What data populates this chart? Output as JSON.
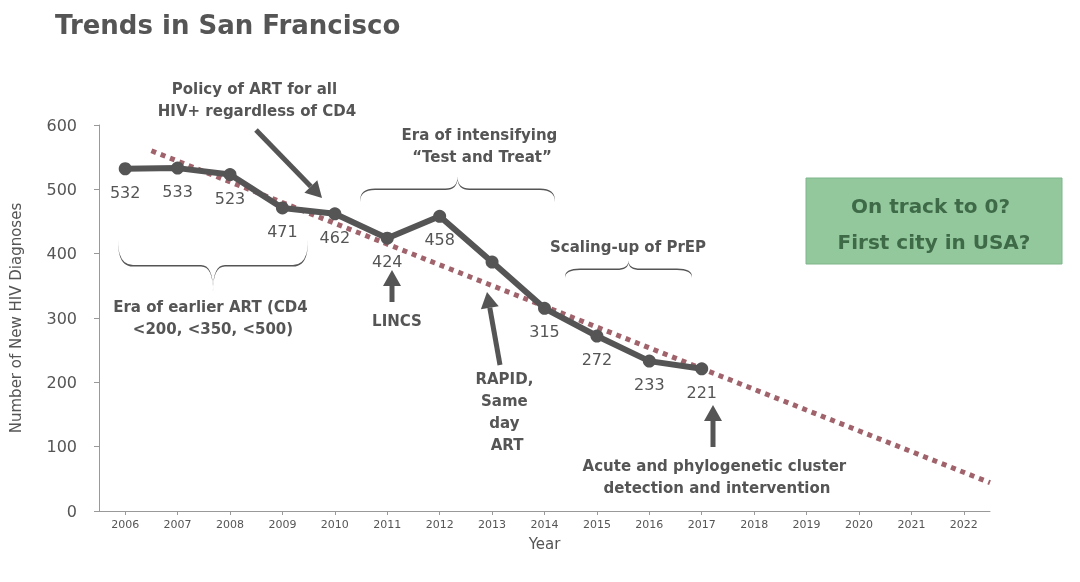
{
  "chart_data": {
    "type": "line",
    "title": "Trends in San Francisco",
    "xlabel": "Year",
    "ylabel": "Number of New HIV Diagnoses",
    "xlim": [
      2005.5,
      2022.5
    ],
    "xticks": [
      2006,
      2007,
      2008,
      2009,
      2010,
      2011,
      2012,
      2013,
      2014,
      2015,
      2016,
      2017,
      2018,
      2019,
      2020,
      2021,
      2022
    ],
    "ylim": [
      0,
      600
    ],
    "yticks": [
      0,
      100,
      200,
      300,
      400,
      500,
      600
    ],
    "grid": false,
    "series": [
      {
        "color": "#555555",
        "marker": "circle",
        "line_style": "solid",
        "x": [
          2006,
          2007,
          2008,
          2009,
          2010,
          2011,
          2012,
          2013,
          2014,
          2015,
          2016,
          2017
        ],
        "values": [
          532,
          533,
          523,
          471,
          462,
          424,
          458,
          387,
          315,
          272,
          233,
          221
        ],
        "value_labels": [
          "532",
          "533",
          "523",
          "471",
          "462",
          "424",
          "458",
          null,
          "315",
          "272",
          "233",
          "221"
        ]
      },
      {
        "color": "#a0636b",
        "marker": "none",
        "line_style": "dotted",
        "x": [
          2006.5,
          2022.5
        ],
        "values": [
          560,
          44
        ]
      }
    ],
    "annotations": [
      "Policy of ART for all HIV+ regardless of CD4",
      "Era of intensifying “Test and Treat”",
      "Era of earlier ART (CD4 <200, <350, <500)",
      "LINCS",
      "RAPID, Same day ART",
      "Scaling-up of PrEP",
      "Acute and phylogenetic cluster detection and intervention",
      "On track to 0? First city in USA?"
    ]
  }
}
